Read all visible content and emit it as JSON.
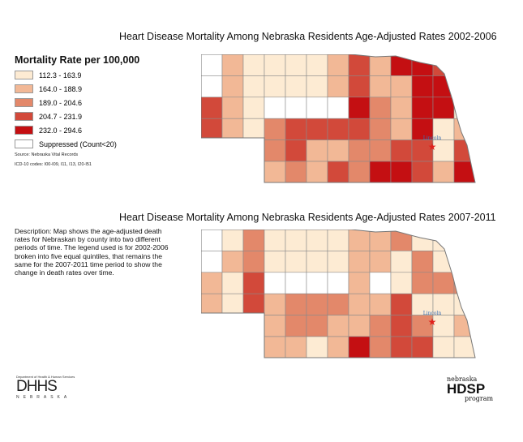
{
  "maps": [
    {
      "title": "Heart Disease Mortality Among Nebraska Residents Age-Adjusted Rates 2002-2006",
      "grid": [
        [
          5,
          1,
          0,
          0,
          0,
          0,
          1,
          3,
          1,
          4,
          4,
          3,
          4
        ],
        [
          5,
          1,
          0,
          0,
          0,
          0,
          1,
          3,
          1,
          1,
          4,
          4,
          4
        ],
        [
          3,
          1,
          0,
          5,
          5,
          5,
          5,
          4,
          2,
          1,
          4,
          4,
          0
        ],
        [
          3,
          1,
          0,
          2,
          3,
          3,
          3,
          3,
          2,
          1,
          4,
          0,
          1
        ],
        [
          null,
          null,
          null,
          2,
          3,
          1,
          1,
          2,
          2,
          3,
          3,
          0,
          3
        ],
        [
          null,
          null,
          null,
          1,
          2,
          1,
          3,
          2,
          4,
          4,
          3,
          1,
          4
        ]
      ]
    },
    {
      "title": "Heart Disease Mortality Among Nebraska Residents Age-Adjusted Rates 2007-2011",
      "grid": [
        [
          5,
          0,
          2,
          0,
          0,
          0,
          0,
          1,
          1,
          2,
          0,
          0,
          3
        ],
        [
          5,
          1,
          2,
          0,
          0,
          0,
          0,
          1,
          1,
          0,
          2,
          0,
          1
        ],
        [
          1,
          0,
          3,
          5,
          5,
          5,
          5,
          1,
          5,
          0,
          2,
          2,
          2
        ],
        [
          1,
          0,
          3,
          1,
          2,
          2,
          2,
          1,
          1,
          3,
          0,
          0,
          0
        ],
        [
          null,
          null,
          null,
          1,
          2,
          2,
          1,
          1,
          2,
          3,
          2,
          0,
          1
        ],
        [
          null,
          null,
          null,
          1,
          1,
          0,
          1,
          4,
          2,
          3,
          3,
          0,
          0
        ]
      ]
    }
  ],
  "city_label": "Lincoln",
  "legend": {
    "title": "Mortality Rate per 100,000",
    "items": [
      {
        "label": "112.3 - 163.9",
        "color": "#fdebd3"
      },
      {
        "label": "164.0 - 188.9",
        "color": "#f2b896"
      },
      {
        "label": "189.0 - 204.6",
        "color": "#e3886a"
      },
      {
        "label": "204.7 - 231.9",
        "color": "#d2493a"
      },
      {
        "label": "232.0 - 294.6",
        "color": "#c40f12"
      },
      {
        "label": "Suppressed (Count<20)",
        "color": "#ffffff"
      }
    ]
  },
  "source": "Source:  Nebraska Vital Records",
  "icd": "ICD-10 codes: I00-I09, I11, I13, I20-I51",
  "description": "Description:  Map shows the age-adjusted death rates for Nebraskan by county into two different periods of time.  The legend used is for 2002-2006 broken into five equal quintiles, that remains the same for the 2007-2011 time period to show the change in death rates over time.",
  "logos": {
    "dhhs_top": "Department of Health & Human Services",
    "dhhs": "DHHS",
    "dhhs_sub": "NEBRASKA",
    "hdsp_top": "nebraska",
    "hdsp": "HDSP",
    "hdsp_sub": "program"
  }
}
